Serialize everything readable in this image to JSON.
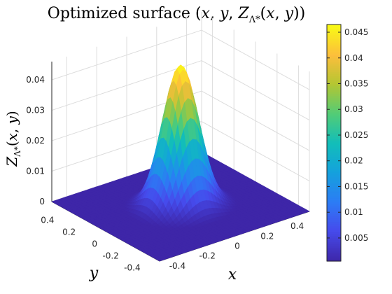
{
  "chart_data": {
    "type": "surface",
    "title": "Optimized surface (x, y, Z_Λ*(x, y))",
    "xlabel": "x",
    "ylabel": "y",
    "zlabel": "Z_Λ*(x, y)",
    "xlim": [
      -0.5,
      0.5
    ],
    "ylim": [
      -0.5,
      0.5
    ],
    "zlim": [
      0,
      0.046
    ],
    "x_ticks": [
      "-0.4",
      "-0.2",
      "0",
      "0.2",
      "0.4"
    ],
    "y_ticks": [
      "-0.4",
      "-0.2",
      "0",
      "0.2",
      "0.4"
    ],
    "z_ticks": [
      "0",
      "0.01",
      "0.02",
      "0.03",
      "0.04"
    ],
    "colorbar_ticks": [
      "0.005",
      "0.01",
      "0.015",
      "0.02",
      "0.025",
      "0.03",
      "0.035",
      "0.04",
      "0.045"
    ],
    "colorbar_range": [
      0.0005,
      0.0465
    ],
    "colormap": "parula",
    "grid": true,
    "surface": {
      "function": "gaussian",
      "peak": 0.0465,
      "center": [
        0,
        0
      ],
      "sigma": 0.1
    }
  }
}
